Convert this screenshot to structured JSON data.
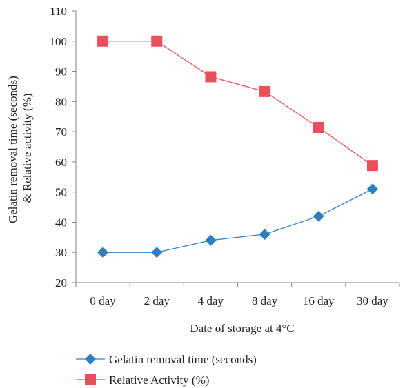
{
  "chart_data": {
    "type": "line",
    "categories": [
      "0 day",
      "2 day",
      "4 day",
      "8 day",
      "16 day",
      "30 day"
    ],
    "series": [
      {
        "name": "Gelatin removal time (seconds)",
        "values": [
          30,
          30,
          34,
          36,
          42,
          51
        ],
        "color": "#2e7fc2",
        "marker": "diamond"
      },
      {
        "name": "Relative Activity (%)",
        "values": [
          100,
          100,
          88.2,
          83.3,
          71.4,
          58.8
        ],
        "color": "#e8505b",
        "marker": "square"
      }
    ],
    "xlabel": "Date of storage at 4°C",
    "ylabel_lines": [
      "Gelatin removal time (seconds)",
      "& Relative activity (%)"
    ],
    "ylim": [
      20,
      110
    ],
    "yticks": [
      20,
      30,
      40,
      50,
      60,
      70,
      80,
      90,
      100,
      110
    ],
    "grid": false,
    "legend_position": "bottom"
  },
  "colors": {
    "axis": "#808080",
    "text": "#231f20"
  }
}
